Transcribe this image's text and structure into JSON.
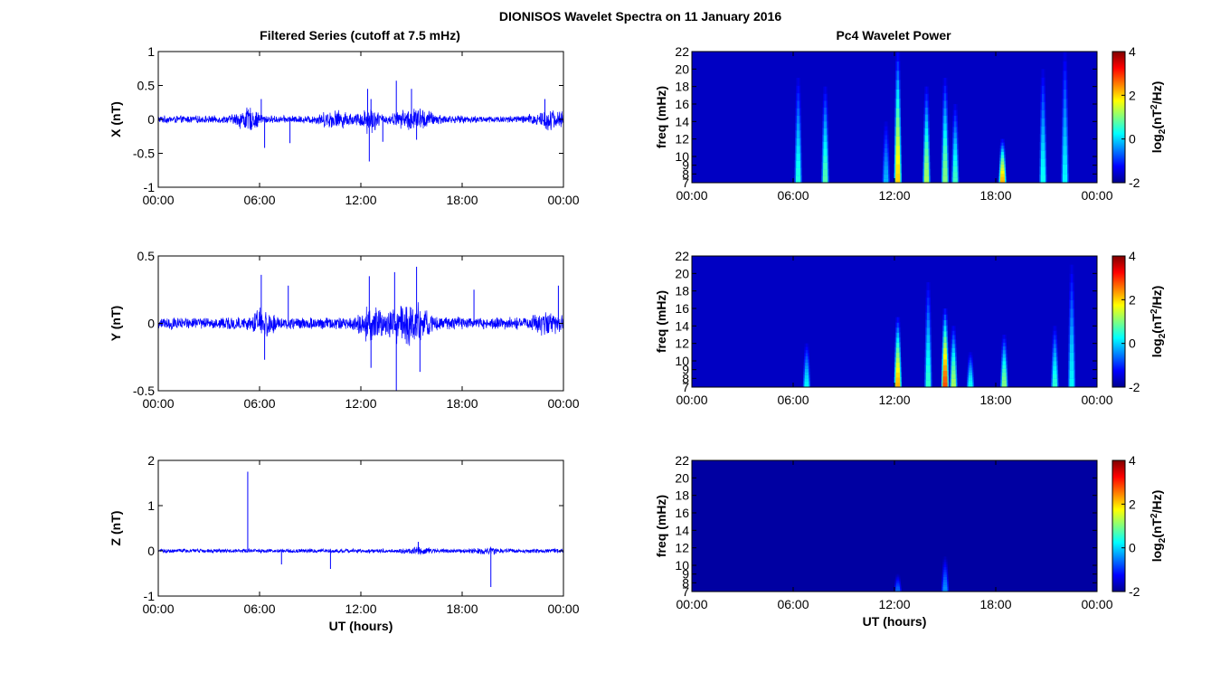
{
  "figure": {
    "title": "DIONISOS Wavelet Spectra on 11 January 2016",
    "left_column_title": "Filtered Series (cutoff at 7.5 mHz)",
    "right_column_title": "Pc4 Wavelet Power"
  },
  "chart_data": [
    {
      "type": "line",
      "panel": "X",
      "title": "Filtered Series (cutoff at 7.5 mHz)",
      "xlabel": "",
      "ylabel": "X (nT)",
      "xlim": [
        0,
        24
      ],
      "ylim": [
        -1,
        1
      ],
      "x_ticks": [
        "00:00",
        "06:00",
        "12:00",
        "18:00",
        "00:00"
      ],
      "y_ticks": [
        "-1",
        "-0.5",
        "0",
        "0.5",
        "1"
      ],
      "y_tick_values": [
        -1,
        -0.5,
        0,
        0.5,
        1
      ],
      "color": "#0000ff",
      "noise_amplitude": 0.06,
      "bursts": [
        {
          "x": 5.3,
          "w": 0.7,
          "a": 0.14
        },
        {
          "x": 10.5,
          "w": 1.0,
          "a": 0.1
        },
        {
          "x": 12.5,
          "w": 0.5,
          "a": 0.18
        },
        {
          "x": 15.2,
          "w": 1.2,
          "a": 0.14
        },
        {
          "x": 23.2,
          "w": 1.0,
          "a": 0.12
        }
      ],
      "spikes": [
        {
          "x": 6.1,
          "y": 0.3
        },
        {
          "x": 6.3,
          "y": -0.42
        },
        {
          "x": 7.8,
          "y": -0.35
        },
        {
          "x": 12.4,
          "y": 0.45
        },
        {
          "x": 12.5,
          "y": -0.62
        },
        {
          "x": 12.6,
          "y": 0.3
        },
        {
          "x": 13.3,
          "y": -0.33
        },
        {
          "x": 14.1,
          "y": 0.57
        },
        {
          "x": 15.0,
          "y": 0.45
        },
        {
          "x": 15.3,
          "y": -0.3
        },
        {
          "x": 22.9,
          "y": 0.3
        },
        {
          "x": 24.0,
          "y": -0.3
        }
      ]
    },
    {
      "type": "line",
      "panel": "Y",
      "xlabel": "",
      "ylabel": "Y (nT)",
      "xlim": [
        0,
        24
      ],
      "ylim": [
        -0.5,
        0.5
      ],
      "x_ticks": [
        "00:00",
        "06:00",
        "12:00",
        "18:00",
        "00:00"
      ],
      "y_ticks": [
        "-0.5",
        "0",
        "0.5"
      ],
      "y_tick_values": [
        -0.5,
        0,
        0.5
      ],
      "color": "#0000ff",
      "noise_amplitude": 0.05,
      "bursts": [
        {
          "x": 6.2,
          "w": 0.6,
          "a": 0.08
        },
        {
          "x": 12.6,
          "w": 0.6,
          "a": 0.12
        },
        {
          "x": 14.2,
          "w": 0.8,
          "a": 0.1
        },
        {
          "x": 15.3,
          "w": 0.8,
          "a": 0.12
        },
        {
          "x": 23.0,
          "w": 0.8,
          "a": 0.06
        }
      ],
      "spikes": [
        {
          "x": 6.1,
          "y": 0.36
        },
        {
          "x": 6.3,
          "y": -0.27
        },
        {
          "x": 7.7,
          "y": 0.28
        },
        {
          "x": 12.5,
          "y": 0.35
        },
        {
          "x": 12.6,
          "y": -0.33
        },
        {
          "x": 14.0,
          "y": 0.38
        },
        {
          "x": 14.1,
          "y": -0.5
        },
        {
          "x": 15.3,
          "y": 0.42
        },
        {
          "x": 15.5,
          "y": -0.36
        },
        {
          "x": 18.7,
          "y": 0.25
        },
        {
          "x": 23.7,
          "y": 0.28
        },
        {
          "x": 24.0,
          "y": -0.38
        }
      ]
    },
    {
      "type": "line",
      "panel": "Z",
      "xlabel": "UT (hours)",
      "ylabel": "Z (nT)",
      "xlim": [
        0,
        24
      ],
      "ylim": [
        -1,
        2
      ],
      "x_ticks": [
        "00:00",
        "06:00",
        "12:00",
        "18:00",
        "00:00"
      ],
      "y_ticks": [
        "-1",
        "0",
        "1",
        "2"
      ],
      "y_tick_values": [
        -1,
        0,
        1,
        2
      ],
      "color": "#0000ff",
      "noise_amplitude": 0.05,
      "bursts": [
        {
          "x": 15.5,
          "w": 0.8,
          "a": 0.05
        },
        {
          "x": 19.5,
          "w": 0.8,
          "a": 0.05
        }
      ],
      "spikes": [
        {
          "x": 5.3,
          "y": 1.75
        },
        {
          "x": 7.3,
          "y": -0.3
        },
        {
          "x": 10.2,
          "y": -0.4
        },
        {
          "x": 15.4,
          "y": 0.2
        },
        {
          "x": 19.7,
          "y": -0.8
        }
      ]
    },
    {
      "type": "heatmap",
      "panel": "X-wavelet",
      "title": "Pc4 Wavelet Power",
      "xlabel": "",
      "ylabel": "freq (mHz)",
      "xlim": [
        0,
        24
      ],
      "ylim": [
        7,
        22
      ],
      "x_ticks": [
        "00:00",
        "06:00",
        "12:00",
        "18:00",
        "00:00"
      ],
      "y_ticks": [
        "7",
        "8",
        "9",
        "10",
        "12",
        "14",
        "16",
        "18",
        "20",
        "22"
      ],
      "y_tick_values": [
        7,
        8,
        9,
        10,
        12,
        14,
        16,
        18,
        20,
        22
      ],
      "colorbar": {
        "label": "log2(nT2/Hz)",
        "range": [
          -2,
          4
        ],
        "ticks": [
          "4",
          "2",
          "0",
          "-2"
        ],
        "tick_values": [
          4,
          2,
          0,
          -2
        ]
      },
      "background": -1.6,
      "events": [
        {
          "t": 6.3,
          "f_top": 19,
          "peak": 0.4
        },
        {
          "t": 7.9,
          "f_top": 18,
          "peak": 0.7
        },
        {
          "t": 11.5,
          "f_top": 14,
          "peak": -0.2
        },
        {
          "t": 12.2,
          "f_top": 22,
          "peak": 2.0
        },
        {
          "t": 13.9,
          "f_top": 18,
          "peak": 1.2
        },
        {
          "t": 15.0,
          "f_top": 19,
          "peak": 1.0
        },
        {
          "t": 15.6,
          "f_top": 16,
          "peak": 0.6
        },
        {
          "t": 18.4,
          "f_top": 12,
          "peak": 2.2
        },
        {
          "t": 20.8,
          "f_top": 20,
          "peak": 0.3
        },
        {
          "t": 22.1,
          "f_top": 22,
          "peak": 0.2
        }
      ]
    },
    {
      "type": "heatmap",
      "panel": "Y-wavelet",
      "xlabel": "",
      "ylabel": "freq (mHz)",
      "xlim": [
        0,
        24
      ],
      "ylim": [
        7,
        22
      ],
      "x_ticks": [
        "00:00",
        "06:00",
        "12:00",
        "18:00",
        "00:00"
      ],
      "y_ticks": [
        "7",
        "8",
        "9",
        "10",
        "12",
        "14",
        "16",
        "18",
        "20",
        "22"
      ],
      "y_tick_values": [
        7,
        8,
        9,
        10,
        12,
        14,
        16,
        18,
        20,
        22
      ],
      "colorbar": {
        "label": "log2(nT2/Hz)",
        "range": [
          -2,
          4
        ],
        "ticks": [
          "4",
          "2",
          "0",
          "-2"
        ],
        "tick_values": [
          4,
          2,
          0,
          -2
        ]
      },
      "background": -1.6,
      "events": [
        {
          "t": 6.8,
          "f_top": 12,
          "peak": 0.2
        },
        {
          "t": 12.2,
          "f_top": 15,
          "peak": 2.2
        },
        {
          "t": 14.0,
          "f_top": 19,
          "peak": 0.5
        },
        {
          "t": 15.0,
          "f_top": 16,
          "peak": 2.8
        },
        {
          "t": 15.5,
          "f_top": 14,
          "peak": 1.2
        },
        {
          "t": 16.5,
          "f_top": 11,
          "peak": 0.3
        },
        {
          "t": 18.5,
          "f_top": 13,
          "peak": 1.0
        },
        {
          "t": 21.5,
          "f_top": 14,
          "peak": 0.5
        },
        {
          "t": 22.5,
          "f_top": 21,
          "peak": 0.2
        }
      ]
    },
    {
      "type": "heatmap",
      "panel": "Z-wavelet",
      "xlabel": "UT (hours)",
      "ylabel": "freq (mHz)",
      "xlim": [
        0,
        24
      ],
      "ylim": [
        7,
        22
      ],
      "x_ticks": [
        "00:00",
        "06:00",
        "12:00",
        "18:00",
        "00:00"
      ],
      "y_ticks": [
        "7",
        "8",
        "9",
        "10",
        "12",
        "14",
        "16",
        "18",
        "20",
        "22"
      ],
      "y_tick_values": [
        7,
        8,
        9,
        10,
        12,
        14,
        16,
        18,
        20,
        22
      ],
      "colorbar": {
        "label": "log2(nT2/Hz)",
        "range": [
          -2,
          4
        ],
        "ticks": [
          "4",
          "2",
          "0",
          "-2"
        ],
        "tick_values": [
          4,
          2,
          0,
          -2
        ]
      },
      "background": -1.8,
      "events": [
        {
          "t": 12.2,
          "f_top": 9,
          "peak": -0.6
        },
        {
          "t": 15.0,
          "f_top": 11,
          "peak": -0.4
        }
      ]
    }
  ]
}
